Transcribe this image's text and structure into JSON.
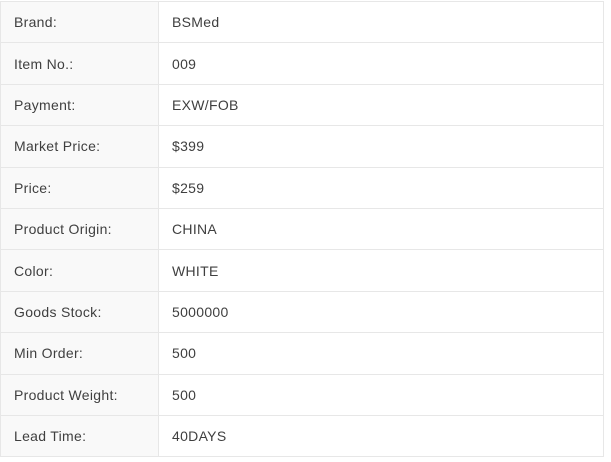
{
  "table": {
    "rows": [
      {
        "label": "Brand:",
        "value": "BSMed"
      },
      {
        "label": "Item No.:",
        "value": "009"
      },
      {
        "label": "Payment:",
        "value": "EXW/FOB"
      },
      {
        "label": "Market Price:",
        "value": "$399"
      },
      {
        "label": "Price:",
        "value": "$259"
      },
      {
        "label": "Product Origin:",
        "value": "CHINA"
      },
      {
        "label": "Color:",
        "value": "WHITE"
      },
      {
        "label": "Goods Stock:",
        "value": "5000000"
      },
      {
        "label": "Min Order:",
        "value": "500"
      },
      {
        "label": "Product Weight:",
        "value": "500"
      },
      {
        "label": "Lead Time:",
        "value": "40DAYS"
      }
    ],
    "colors": {
      "label_column_bg": "#f9f9f9",
      "value_column_bg": "#ffffff",
      "border": "#e7e7e7",
      "text": "#3f3f3f"
    }
  }
}
